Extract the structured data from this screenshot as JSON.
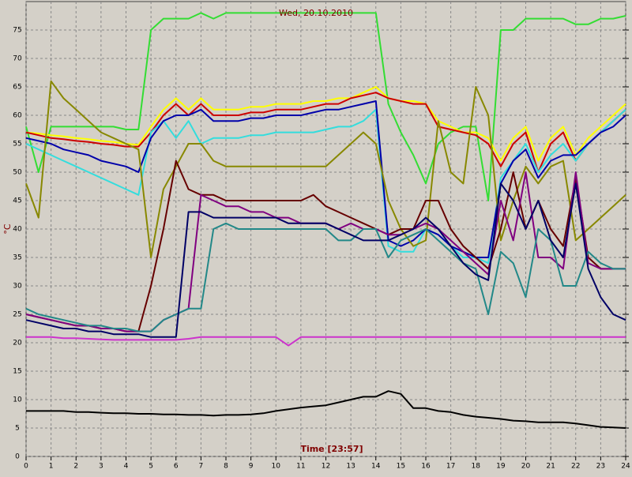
{
  "chart_data": {
    "type": "line",
    "title": "Wed, 20.10.2010",
    "x_label": "Time [23:57]",
    "y_label": "°C",
    "x": [
      0,
      0.5,
      1,
      1.5,
      2,
      2.5,
      3,
      3.5,
      4,
      4.5,
      5,
      5.5,
      6,
      6.5,
      7,
      7.5,
      8,
      8.5,
      9,
      9.5,
      10,
      10.5,
      11,
      11.5,
      12,
      12.5,
      13,
      13.5,
      14,
      14.5,
      15,
      15.5,
      16,
      16.5,
      17,
      17.5,
      18,
      18.5,
      19,
      19.5,
      20,
      20.5,
      21,
      21.5,
      22,
      22.5,
      23,
      23.5,
      24
    ],
    "xlim": [
      0,
      24
    ],
    "xticks": [
      0,
      1,
      2,
      3,
      4,
      5,
      6,
      7,
      8,
      9,
      10,
      11,
      12,
      13,
      14,
      15,
      16,
      17,
      18,
      19,
      20,
      21,
      22,
      23,
      24
    ],
    "ylim": [
      0,
      80
    ],
    "yticks": [
      0,
      5,
      10,
      15,
      20,
      25,
      30,
      35,
      40,
      45,
      50,
      55,
      60,
      65,
      70,
      75
    ],
    "grid": true,
    "series": [
      {
        "color": "#33dd33",
        "values": [
          58,
          50,
          58,
          58,
          58,
          58,
          58,
          58,
          57.5,
          57.5,
          75,
          77,
          77,
          77,
          78,
          77,
          78,
          78,
          78,
          78,
          78,
          78,
          78,
          78,
          78,
          78,
          78,
          78,
          78,
          62,
          57,
          53,
          48,
          55,
          57,
          58,
          58,
          45,
          75,
          75,
          77,
          77,
          77,
          77,
          76,
          76,
          77,
          77,
          77.5
        ]
      },
      {
        "color": "#ffff00",
        "values": [
          57,
          56.8,
          56.5,
          56.3,
          56,
          55.8,
          55.5,
          55.3,
          55,
          54.8,
          58,
          61,
          63,
          61,
          63,
          61,
          61,
          61,
          61.5,
          61.5,
          62,
          62,
          62,
          62.5,
          62.5,
          63,
          63,
          64,
          65,
          63,
          62.5,
          62.5,
          62,
          59,
          58,
          57,
          57,
          56,
          52,
          56,
          58,
          52,
          56,
          58,
          53,
          56,
          58,
          60,
          62
        ]
      },
      {
        "color": "#cc0000",
        "values": [
          57,
          56.5,
          56,
          55.8,
          55.5,
          55.3,
          55,
          54.8,
          54.5,
          54.5,
          57,
          60,
          62,
          60,
          62,
          60,
          60,
          60,
          60.5,
          60.5,
          61,
          61,
          61,
          61.5,
          62,
          62,
          63,
          63.5,
          64,
          63,
          62.5,
          62,
          62,
          58,
          57.5,
          57,
          56.5,
          55,
          51,
          55,
          57,
          50,
          55,
          57,
          52,
          55,
          57,
          59,
          61
        ]
      },
      {
        "color": "#33dddd",
        "values": [
          55,
          54,
          53,
          52,
          51,
          50,
          49,
          48,
          47,
          46,
          57,
          59,
          56,
          59,
          55,
          56,
          56,
          56,
          56.5,
          56.5,
          57,
          57,
          57,
          57,
          57.5,
          58,
          58,
          59,
          61,
          37,
          36,
          36,
          40,
          39,
          37,
          35,
          35,
          34,
          49,
          52,
          55,
          50,
          53,
          55,
          52,
          55,
          57,
          59,
          61
        ]
      },
      {
        "color": "#0000aa",
        "values": [
          56,
          55.5,
          55,
          54,
          53.5,
          53,
          52,
          51.5,
          51,
          50,
          56,
          59,
          60,
          60,
          61,
          59,
          59,
          59,
          59.5,
          59.5,
          60,
          60,
          60,
          60.5,
          61,
          61,
          61.5,
          62,
          62.5,
          38,
          37,
          38,
          40,
          39,
          37,
          36,
          35,
          35,
          48,
          52,
          54,
          49,
          52,
          53,
          53,
          55,
          57,
          58,
          60
        ]
      },
      {
        "color": "#888800",
        "values": [
          48,
          42,
          66,
          63,
          61,
          59,
          57,
          56,
          55,
          54,
          35,
          47,
          51,
          55,
          55,
          52,
          51,
          51,
          51,
          51,
          51,
          51,
          51,
          51,
          51,
          53,
          55,
          57,
          55,
          45,
          40,
          37,
          38,
          59,
          50,
          48,
          65,
          60,
          38,
          45,
          51,
          48,
          51,
          52,
          38,
          40,
          42,
          44,
          46
        ]
      },
      {
        "color": "#660000",
        "values": [
          25,
          24.5,
          24,
          23.5,
          23,
          23,
          22.5,
          22.5,
          22,
          22,
          30,
          40,
          52,
          47,
          46,
          46,
          45,
          45,
          45,
          45,
          45,
          45,
          45,
          46,
          44,
          43,
          42,
          41,
          40,
          39,
          40,
          40,
          45,
          45,
          40,
          37,
          35,
          33,
          40,
          50,
          40,
          45,
          40,
          37,
          49,
          35,
          33,
          33,
          33
        ]
      },
      {
        "color": "#800080",
        "values": [
          25,
          24.5,
          24,
          23.5,
          23,
          23,
          22.5,
          22.5,
          22,
          22,
          22,
          24,
          25,
          26,
          46,
          45,
          44,
          44,
          43,
          43,
          42,
          42,
          41,
          41,
          41,
          40,
          41,
          40,
          40,
          39,
          39,
          40,
          41,
          40,
          38,
          36,
          34,
          32,
          45,
          38,
          50,
          35,
          35,
          33,
          50,
          34,
          33,
          33,
          33
        ]
      },
      {
        "color": "#228888",
        "values": [
          26,
          25,
          24.5,
          24,
          23.5,
          23,
          23,
          22.5,
          22.5,
          22,
          22,
          24,
          25,
          26,
          26,
          40,
          41,
          40,
          40,
          40,
          40,
          40,
          40,
          40,
          40,
          38,
          38,
          40,
          40,
          35,
          38,
          39,
          40,
          38,
          36,
          34,
          33,
          25,
          36,
          34,
          28,
          40,
          38,
          30,
          30,
          36,
          34,
          33,
          33
        ]
      },
      {
        "color": "#000066",
        "values": [
          24,
          23.5,
          23,
          22.5,
          22.5,
          22,
          22,
          21.5,
          21.5,
          21.5,
          21,
          21,
          21,
          43,
          43,
          42,
          42,
          42,
          42,
          42,
          42,
          41,
          41,
          41,
          41,
          40,
          39,
          38,
          38,
          38,
          39,
          40,
          42,
          40,
          37,
          34,
          32,
          31,
          48,
          45,
          40,
          45,
          38,
          35,
          48,
          33,
          28,
          25,
          24
        ]
      },
      {
        "color": "#cc33cc",
        "values": [
          21,
          21,
          21,
          20.8,
          20.8,
          20.7,
          20.6,
          20.5,
          20.5,
          20.5,
          20.5,
          20.5,
          20.5,
          20.7,
          21,
          21,
          21,
          21,
          21,
          21,
          21,
          19.5,
          21,
          21,
          21,
          21,
          21,
          21,
          21,
          21,
          21,
          21,
          21,
          21,
          21,
          21,
          21,
          21,
          21,
          21,
          21,
          21,
          21,
          21,
          21,
          21,
          21,
          21,
          21
        ]
      },
      {
        "color": "#000000",
        "values": [
          8,
          8,
          8,
          8,
          7.8,
          7.8,
          7.7,
          7.6,
          7.6,
          7.5,
          7.5,
          7.4,
          7.4,
          7.3,
          7.3,
          7.2,
          7.3,
          7.3,
          7.4,
          7.6,
          8,
          8.3,
          8.6,
          8.8,
          9,
          9.5,
          10,
          10.5,
          10.5,
          11.5,
          11,
          8.5,
          8.5,
          8,
          7.8,
          7.3,
          7,
          6.8,
          6.6,
          6.3,
          6.2,
          6,
          6,
          6,
          5.8,
          5.5,
          5.2,
          5.1,
          5
        ]
      }
    ]
  }
}
